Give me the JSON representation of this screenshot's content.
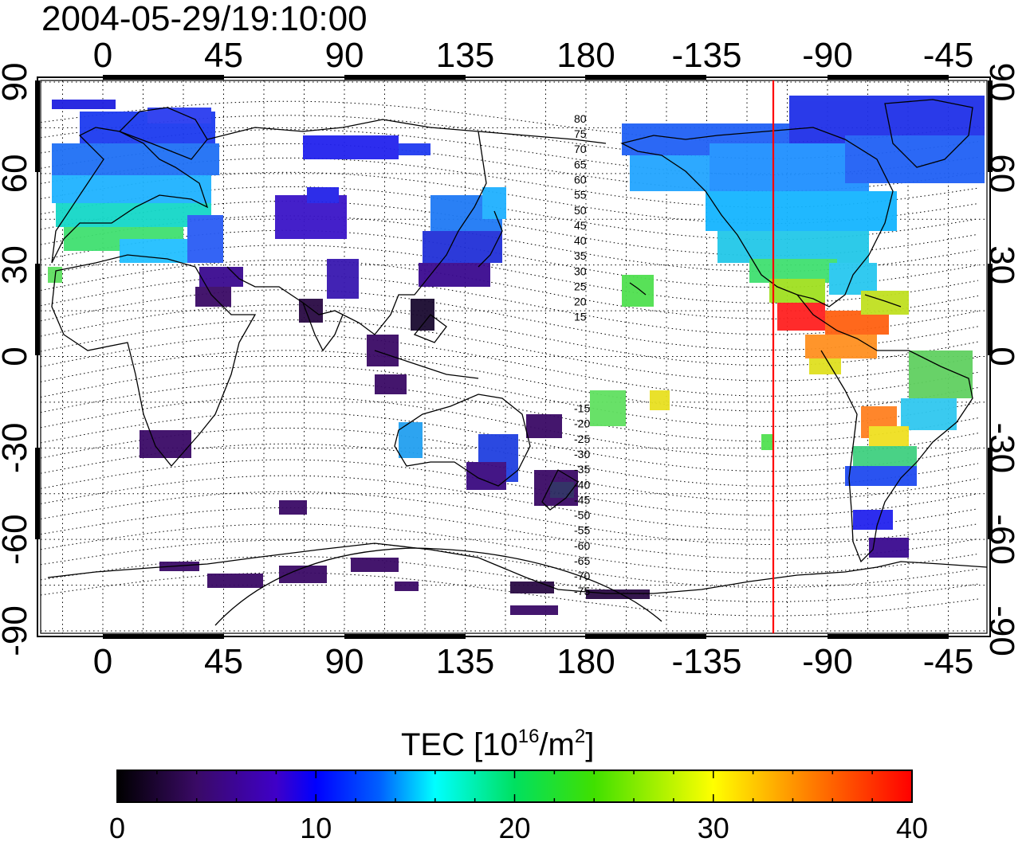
{
  "title": "2004-05-29/19:10:00",
  "map": {
    "top_tick_labels": [
      "0",
      "45",
      "90",
      "135",
      "180",
      "-135",
      "-90",
      "-45"
    ],
    "bottom_tick_labels": [
      "0",
      "45",
      "90",
      "135",
      "180",
      "-135",
      "-90",
      "-45"
    ],
    "left_tick_labels": [
      "90",
      "60",
      "30",
      "0",
      "-30",
      "-60",
      "-90"
    ],
    "right_tick_labels": [
      "90",
      "60",
      "30",
      "0",
      "-30",
      "-60",
      "-90"
    ],
    "magnetic_latitude_labels": [
      "80",
      "75",
      "70",
      "65",
      "60",
      "55",
      "50",
      "45",
      "40",
      "35",
      "30",
      "25",
      "20",
      "15",
      "-15",
      "-20",
      "-25",
      "-30",
      "-35",
      "-40",
      "-45",
      "-50",
      "-55",
      "-60",
      "-65",
      "-70",
      "-75"
    ],
    "marker_line_longitude": -105,
    "marker_line_color": "#ff0000"
  },
  "colorbar": {
    "title_prefix": "TEC  [10",
    "title_exp": "16",
    "title_mid": "/m",
    "title_exp2": "2",
    "title_suffix": "]",
    "tick_labels": [
      "0",
      "10",
      "20",
      "30",
      "40"
    ],
    "min": 0,
    "max": 40,
    "colors": [
      "#000000",
      "#3a0a66",
      "#3f00c8",
      "#0000ff",
      "#0060ff",
      "#00ffff",
      "#00e060",
      "#40e000",
      "#ffff00",
      "#ff8000",
      "#ff0000"
    ]
  }
}
